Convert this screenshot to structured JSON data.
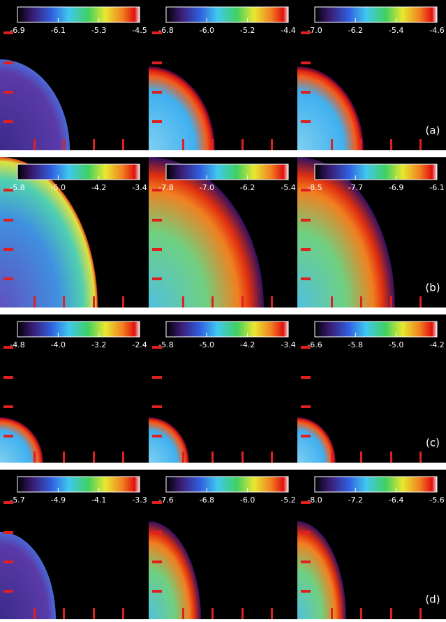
{
  "rows": [
    {
      "label": "(a)",
      "panels": [
        {
          "ticks": [
            "-6.9",
            "-6.1",
            "-5.3",
            "-4.5"
          ]
        },
        {
          "ticks": [
            "-6.8",
            "-6.0",
            "-5.2",
            "-4.4"
          ]
        },
        {
          "ticks": [
            "-7.0",
            "-6.2",
            "-5.4",
            "-4.6"
          ]
        }
      ]
    },
    {
      "label": "(b)",
      "panels": [
        {
          "ticks": [
            "-5.8",
            "-5.0",
            "-4.2",
            "-3.4"
          ]
        },
        {
          "ticks": [
            "-7.8",
            "-7.0",
            "-6.2",
            "-5.4"
          ]
        },
        {
          "ticks": [
            "-8.5",
            "-7.7",
            "-6.9",
            "-6.1"
          ]
        }
      ]
    },
    {
      "label": "(c)",
      "panels": [
        {
          "ticks": [
            "-4.8",
            "-4.0",
            "-3.2",
            "-2.4"
          ]
        },
        {
          "ticks": [
            "-5.8",
            "-5.0",
            "-4.2",
            "-3.4"
          ]
        },
        {
          "ticks": [
            "-6.6",
            "-5.8",
            "-5.0",
            "-4.2"
          ]
        }
      ]
    },
    {
      "label": "(d)",
      "panels": [
        {
          "ticks": [
            "-5.7",
            "-4.9",
            "-4.1",
            "-3.3"
          ]
        },
        {
          "ticks": [
            "-7.6",
            "-6.8",
            "-6.0",
            "-5.2"
          ]
        },
        {
          "ticks": [
            "-8.0",
            "-7.2",
            "-6.4",
            "-5.6"
          ]
        }
      ]
    }
  ]
}
